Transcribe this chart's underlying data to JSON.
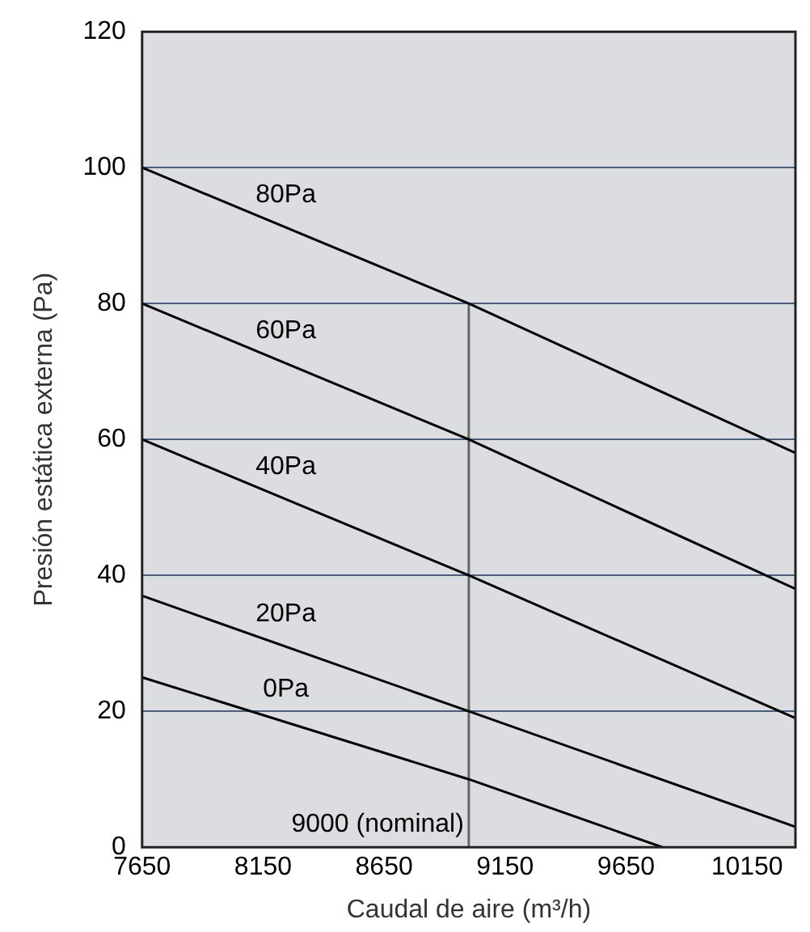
{
  "chart_data": {
    "type": "line",
    "xlabel": "Caudal de aire (m³/h)",
    "ylabel": "Presión estática externa (Pa)",
    "xlim": [
      7650,
      10350
    ],
    "xticks": [
      7650,
      8150,
      8650,
      9150,
      9650,
      10150
    ],
    "ylim": [
      0,
      120
    ],
    "yticks": [
      0,
      20,
      40,
      60,
      80,
      100,
      120
    ],
    "grid": "y",
    "legend": false,
    "marker": "none",
    "line_style": "solid",
    "series": [
      {
        "name": "80Pa",
        "color": "#000000",
        "x": [
          7650,
          9000,
          10350
        ],
        "values": [
          100,
          80,
          58
        ]
      },
      {
        "name": "60Pa",
        "color": "#000000",
        "x": [
          7650,
          9000,
          10350
        ],
        "values": [
          80,
          60,
          38
        ]
      },
      {
        "name": "40Pa",
        "color": "#000000",
        "x": [
          7650,
          9000,
          10350
        ],
        "values": [
          60,
          40,
          19
        ]
      },
      {
        "name": "20Pa",
        "color": "#000000",
        "x": [
          7650,
          9000,
          10350
        ],
        "values": [
          37,
          20,
          3
        ]
      },
      {
        "name": "0Pa",
        "color": "#000000",
        "x": [
          7650,
          9000,
          9800
        ],
        "values": [
          25,
          10,
          0
        ]
      },
      {
        "name": "9000 (nominal)",
        "color": "#666666",
        "x": [
          9000,
          9000
        ],
        "values": [
          0,
          80
        ]
      }
    ]
  }
}
